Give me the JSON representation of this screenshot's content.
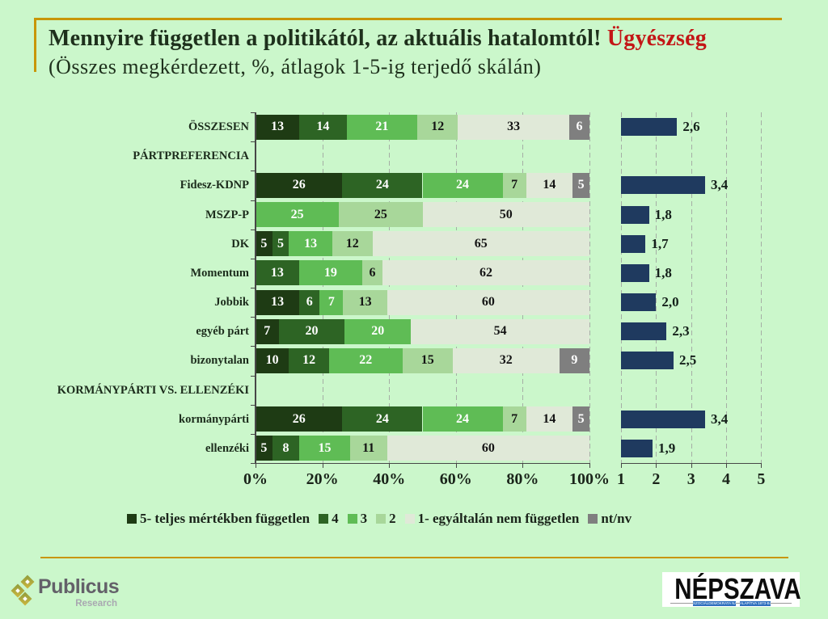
{
  "slide": {
    "title_main": "Mennyire független a politikától, az aktuális hatalomtól!",
    "title_highlight": "Ügyészség",
    "subtitle": "(Összes megkérdezett, %, átlagok 1-5-ig terjedő skálán)"
  },
  "colors": {
    "background": "#cbf7cb",
    "accent_line": "#c89608",
    "title_text": "#1e301c",
    "highlight_text": "#c31616",
    "s5": "#1e3b14",
    "s4": "#2d6424",
    "s3": "#5fbc55",
    "s2": "#a8d79a",
    "s1": "#e0e9d8",
    "nn": "#7f7f7f",
    "avg_bar": "#1f3a5f"
  },
  "chart_data": {
    "type": "bar",
    "orientation": "horizontal",
    "stacked_100pct": true,
    "categories": [
      "ÖSSZESEN",
      "PÁRTPREFERENCIA",
      "Fidesz-KDNP",
      "MSZP-P",
      "DK",
      "Momentum",
      "Jobbik",
      "egyéb párt",
      "bizonytalan",
      "KORMÁNYPÁRTI VS. ELLENZÉKI",
      "kormánypárti",
      "ellenzéki"
    ],
    "header_rows": [
      1,
      9
    ],
    "series": [
      {
        "name": "5- teljes mértékben független",
        "color_key": "s5",
        "values": [
          13,
          null,
          26,
          0,
          5,
          0,
          13,
          7,
          10,
          null,
          26,
          5
        ]
      },
      {
        "name": "4",
        "color_key": "s4",
        "values": [
          14,
          null,
          24,
          0,
          5,
          13,
          6,
          20,
          12,
          null,
          24,
          8
        ]
      },
      {
        "name": "3",
        "color_key": "s3",
        "values": [
          21,
          null,
          24,
          25,
          13,
          19,
          7,
          20,
          22,
          null,
          24,
          15
        ]
      },
      {
        "name": "2",
        "color_key": "s2",
        "values": [
          12,
          null,
          7,
          25,
          12,
          6,
          13,
          0,
          15,
          null,
          7,
          11
        ]
      },
      {
        "name": "1- egyáltalán nem független",
        "color_key": "s1",
        "values": [
          33,
          null,
          14,
          50,
          65,
          62,
          60,
          54,
          32,
          null,
          14,
          60
        ]
      },
      {
        "name": "nt/nv",
        "color_key": "nn",
        "values": [
          6,
          null,
          5,
          0,
          0,
          0,
          0,
          0,
          9,
          null,
          5,
          0
        ]
      }
    ],
    "pct_axis_ticks": [
      "0%",
      "20%",
      "40%",
      "60%",
      "80%",
      "100%"
    ],
    "averages": {
      "values": [
        2.6,
        null,
        3.4,
        1.8,
        1.7,
        1.8,
        2.0,
        2.3,
        2.5,
        null,
        3.4,
        1.9
      ],
      "labels": [
        "2,6",
        null,
        "3,4",
        "1,8",
        "1,7",
        "1,8",
        "2,0",
        "2,3",
        "2,5",
        null,
        "3,4",
        "1,9"
      ],
      "xlim": [
        1,
        5
      ],
      "ticks": [
        "1",
        "2",
        "3",
        "4",
        "5"
      ]
    }
  },
  "legend": {
    "items": [
      {
        "label": "5- teljes mértékben független",
        "color_key": "s5"
      },
      {
        "label": "4",
        "color_key": "s4"
      },
      {
        "label": "3",
        "color_key": "s3"
      },
      {
        "label": "2",
        "color_key": "s2"
      },
      {
        "label": "1- egyáltalán nem független",
        "color_key": "s1"
      },
      {
        "label": "nt/nv",
        "color_key": "nn"
      }
    ]
  },
  "footer": {
    "publicus_name": "Publicus",
    "publicus_sub": "Research",
    "nepszava": "NÉPSZAVA",
    "nepszava_tag_left": "SZOCIÁLDEMOKRATA NAPILAP",
    "nepszava_tag_right": "ALAPÍTVA 1873-BAN"
  }
}
